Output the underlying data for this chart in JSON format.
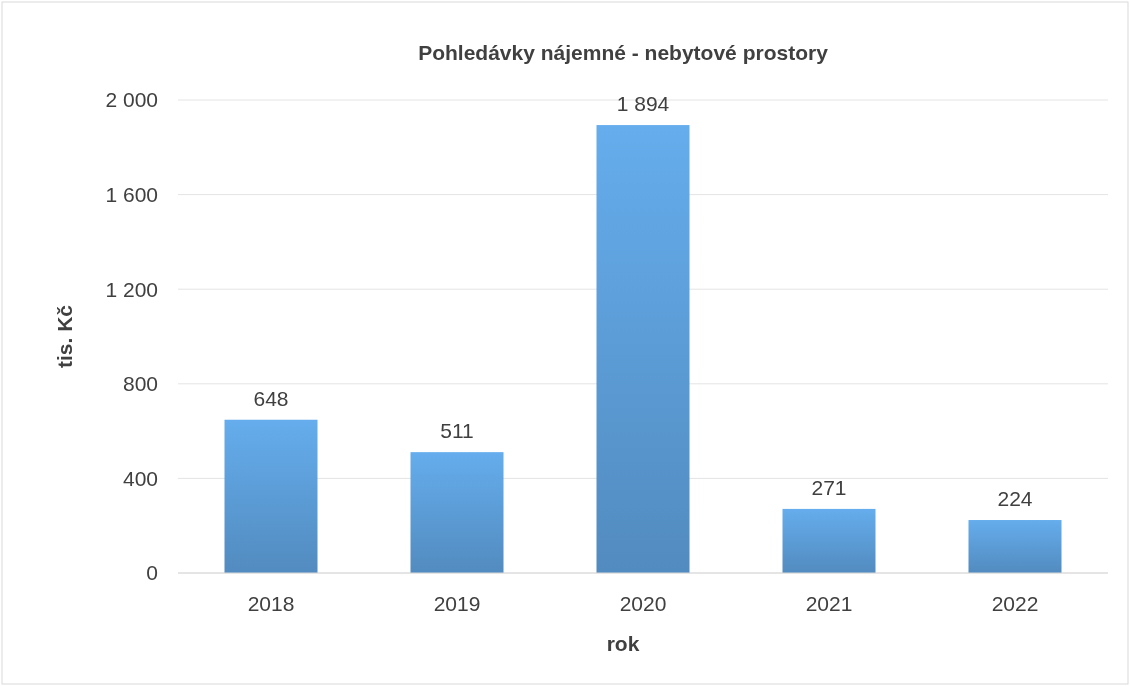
{
  "chart_data": {
    "type": "bar",
    "title": "Pohledávky nájemné - nebytové prostory",
    "xlabel": "rok",
    "ylabel": "tis. Kč",
    "categories": [
      "2018",
      "2019",
      "2020",
      "2021",
      "2022"
    ],
    "values": [
      648,
      511,
      1894,
      271,
      224
    ],
    "value_labels": [
      "648",
      "511",
      "1 894",
      "271",
      "224"
    ],
    "color": "#5b9bd5",
    "ylim": [
      0,
      2000
    ],
    "yticks": [
      {
        "value": 0,
        "label": "0"
      },
      {
        "value": 400,
        "label": "400"
      },
      {
        "value": 800,
        "label": "800"
      },
      {
        "value": 1200,
        "label": "1 200"
      },
      {
        "value": 1600,
        "label": "1 600"
      },
      {
        "value": 2000,
        "label": "2 000"
      }
    ],
    "grid": "y"
  }
}
